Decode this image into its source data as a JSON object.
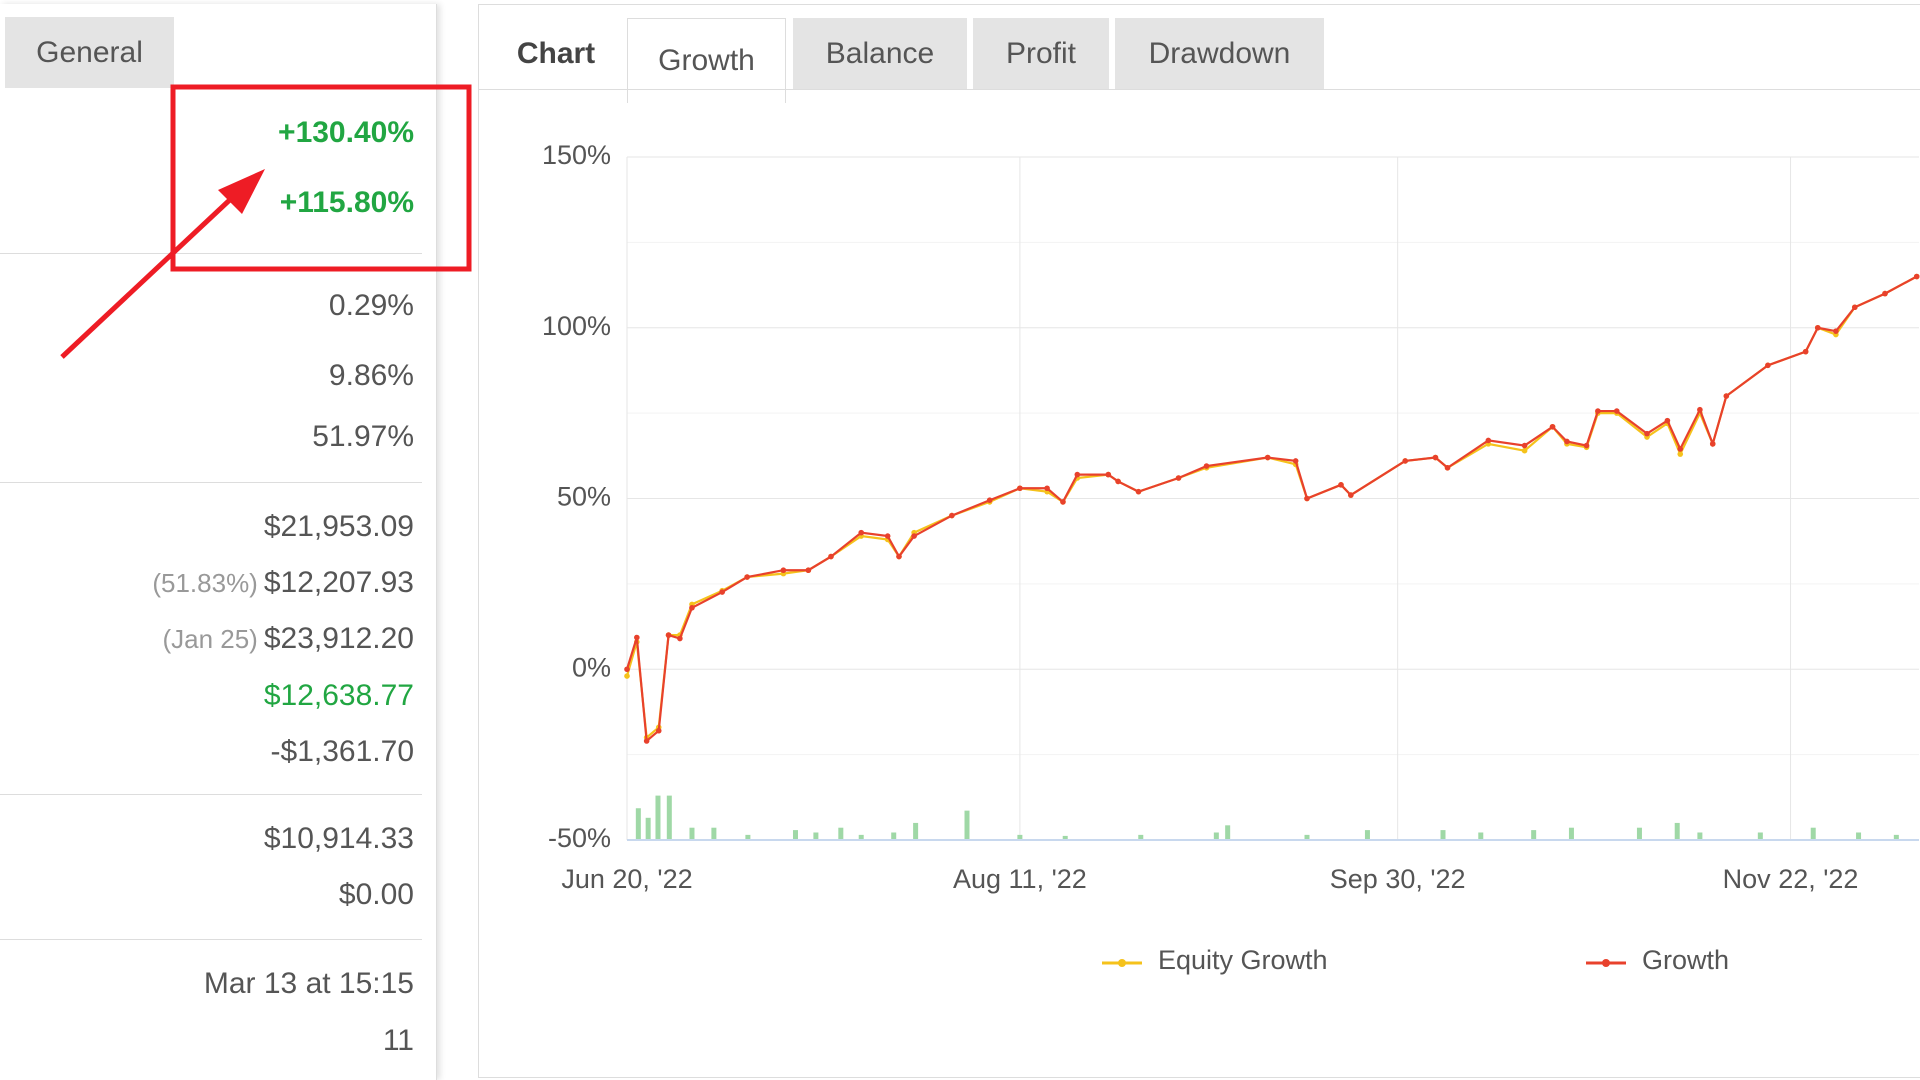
{
  "left_tab": "General",
  "stats": [
    [
      {
        "value": "+130.40%",
        "color": "#21a642"
      },
      {
        "value": "+115.80%",
        "color": "#21a642"
      }
    ],
    [
      {
        "value": "0.29%"
      },
      {
        "value": "9.86%"
      },
      {
        "value": "51.97%"
      }
    ],
    [
      {
        "value": "$21,953.09"
      },
      {
        "note": "(51.83%)",
        "value": "$12,207.93"
      },
      {
        "note": "(Jan 25)",
        "value": "$23,912.20"
      },
      {
        "value": "$12,638.77",
        "color": "#21a642"
      },
      {
        "value": "-$1,361.70"
      }
    ],
    [
      {
        "value": "$10,914.33"
      },
      {
        "value": "$0.00"
      }
    ],
    [
      {
        "value": "Mar 13 at 15:15"
      },
      {
        "value": "11"
      }
    ]
  ],
  "tabs": {
    "label": "Chart",
    "items": [
      "Growth",
      "Balance",
      "Profit",
      "Drawdown"
    ],
    "active": 0
  },
  "chart_data": {
    "type": "line",
    "x": [
      0,
      1.3,
      2.6,
      4.2,
      5.5,
      7,
      8.6,
      12.6,
      15.9,
      20.7,
      24,
      27,
      31,
      34.5,
      36,
      38,
      43,
      48,
      52,
      55.6,
      57.7,
      59.6,
      63.7,
      65,
      67.7,
      73,
      76.7,
      84.8,
      88.5,
      90,
      94.5,
      95.8,
      103,
      107,
      108.6,
      114,
      118.8,
      122.5,
      124.4,
      127,
      128.5,
      131,
      135,
      137.7,
      139.4,
      142,
      143.7,
      145.5,
      151,
      156,
      157.6,
      160,
      162.5,
      166.5,
      170.7
    ],
    "series": [
      {
        "name": "Equity Growth",
        "color": "#f5c21b",
        "values": [
          -2,
          8,
          -20,
          -17,
          10,
          10,
          19,
          23,
          27,
          28,
          29,
          33,
          39,
          38,
          33,
          40,
          45,
          49,
          53,
          52,
          49,
          56,
          57,
          55,
          52,
          56,
          59,
          62,
          60,
          50,
          54,
          51,
          61,
          62,
          59,
          66,
          64,
          71,
          66,
          65,
          75,
          75,
          68,
          72,
          63,
          75,
          66,
          80,
          89,
          93,
          100,
          98,
          106,
          110,
          115
        ]
      },
      {
        "name": "Growth",
        "color": "#e8412c",
        "values": [
          0,
          9.3,
          -21,
          -18,
          10,
          9,
          18,
          22.6,
          27,
          29,
          29,
          33,
          40,
          39,
          33,
          39,
          45,
          49.5,
          53,
          53,
          49,
          57,
          57,
          55,
          52,
          56,
          59.5,
          62,
          61,
          50,
          54,
          51,
          61,
          62,
          59,
          67,
          65.5,
          71,
          66.7,
          65.5,
          75.6,
          75.6,
          69,
          72.8,
          64.5,
          76,
          66,
          80,
          89,
          93,
          100,
          99,
          106,
          110,
          115
        ]
      }
    ],
    "volume": {
      "color": "#9fd8a6",
      "x": [
        1.5,
        2.8,
        4.1,
        5.6,
        8.6,
        11.5,
        16,
        22.3,
        25,
        28.3,
        31,
        35.3,
        38.2,
        45,
        52,
        58,
        68,
        78,
        79.5,
        90,
        98,
        108,
        113,
        120,
        125,
        134,
        139,
        142,
        150,
        157,
        163,
        168
      ],
      "values": [
        9.3,
        6.5,
        13,
        13,
        3.6,
        3.6,
        1.5,
        2.9,
        2.2,
        3.6,
        1.5,
        2.2,
        5,
        8.6,
        1.5,
        1.2,
        1.5,
        2.2,
        4.3,
        1.5,
        2.9,
        2.9,
        2.2,
        2.9,
        3.6,
        3.6,
        5,
        2.2,
        2.2,
        3.6,
        2.2,
        1.5
      ]
    },
    "xlim": [
      0,
      171
    ],
    "xticks": [
      {
        "value": 0,
        "label": "Jun 20, '22"
      },
      {
        "value": 52,
        "label": "Aug 11, '22"
      },
      {
        "value": 102,
        "label": "Sep 30, '22"
      },
      {
        "value": 154,
        "label": "Nov 22, '22"
      }
    ],
    "ylim": [
      -50,
      150
    ],
    "yticks": [
      {
        "value": -50,
        "label": "-50%"
      },
      {
        "value": 0,
        "label": "0%"
      },
      {
        "value": 50,
        "label": "50%"
      },
      {
        "value": 100,
        "label": "100%"
      },
      {
        "value": 150,
        "label": "150%"
      }
    ],
    "grid": true
  }
}
